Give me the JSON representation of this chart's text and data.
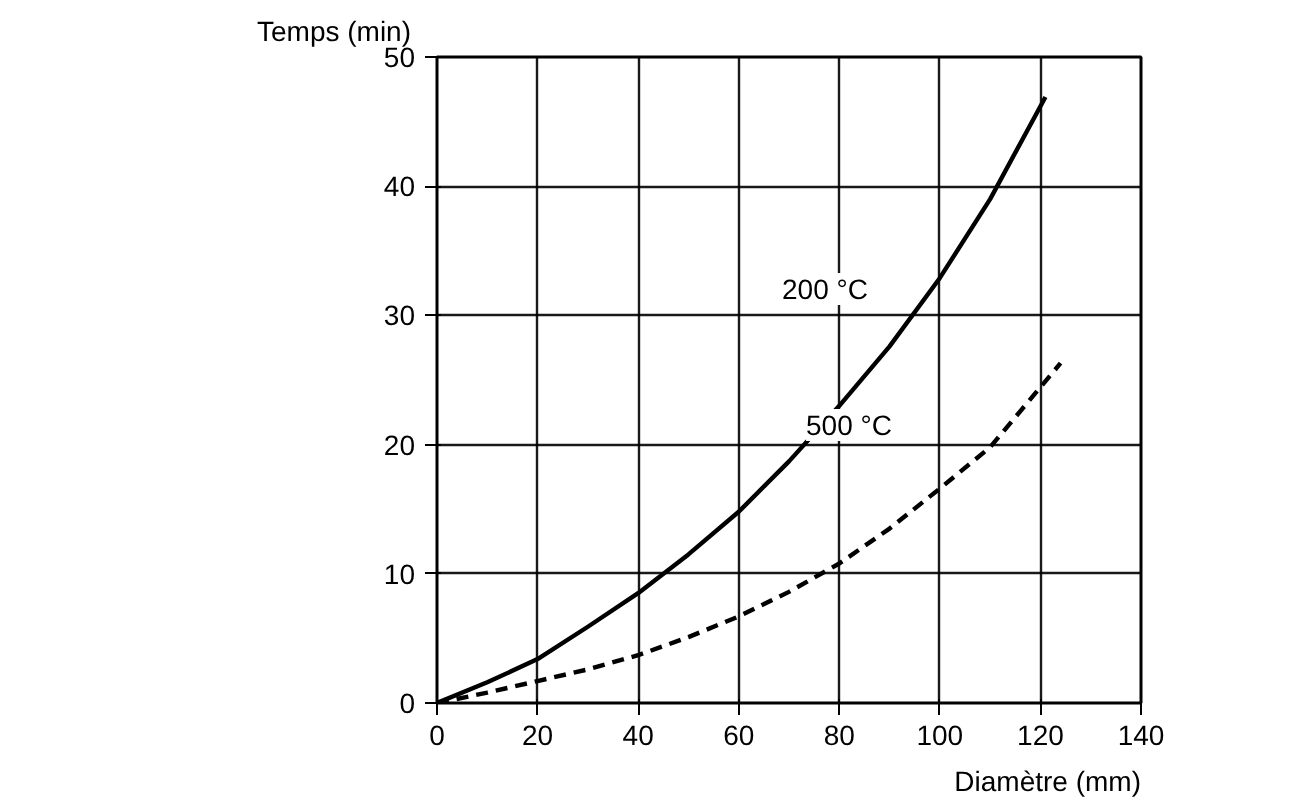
{
  "chart_data": {
    "type": "line",
    "xlabel": "Diamètre (mm)",
    "ylabel": "Temps (min)",
    "xlim": [
      0,
      140
    ],
    "ylim": [
      0,
      50
    ],
    "xticks": [
      0,
      20,
      40,
      60,
      80,
      100,
      120,
      140
    ],
    "yticks": [
      0,
      10,
      20,
      30,
      40,
      50
    ],
    "grid": true,
    "series": [
      {
        "x": [
          0,
          10,
          20,
          30,
          40,
          50,
          60,
          70,
          80,
          90,
          100,
          110,
          121
        ],
        "values": [
          0,
          1.6,
          3.4,
          5.9,
          8.5,
          11.5,
          14.8,
          18.7,
          23,
          27.6,
          32.9,
          39,
          46.9
        ],
        "color": "#000000",
        "line_style": "solid"
      },
      {
        "x": [
          0,
          10,
          20,
          30,
          40,
          50,
          60,
          70,
          80,
          90,
          100,
          110,
          124
        ],
        "values": [
          0,
          0.8,
          1.7,
          2.6,
          3.7,
          5.1,
          6.7,
          8.6,
          10.8,
          13.5,
          16.6,
          19.8,
          26.3
        ],
        "color": "#000000",
        "line_style": "dashed"
      }
    ],
    "annotations": [
      "200 °C",
      "500 °C"
    ]
  }
}
